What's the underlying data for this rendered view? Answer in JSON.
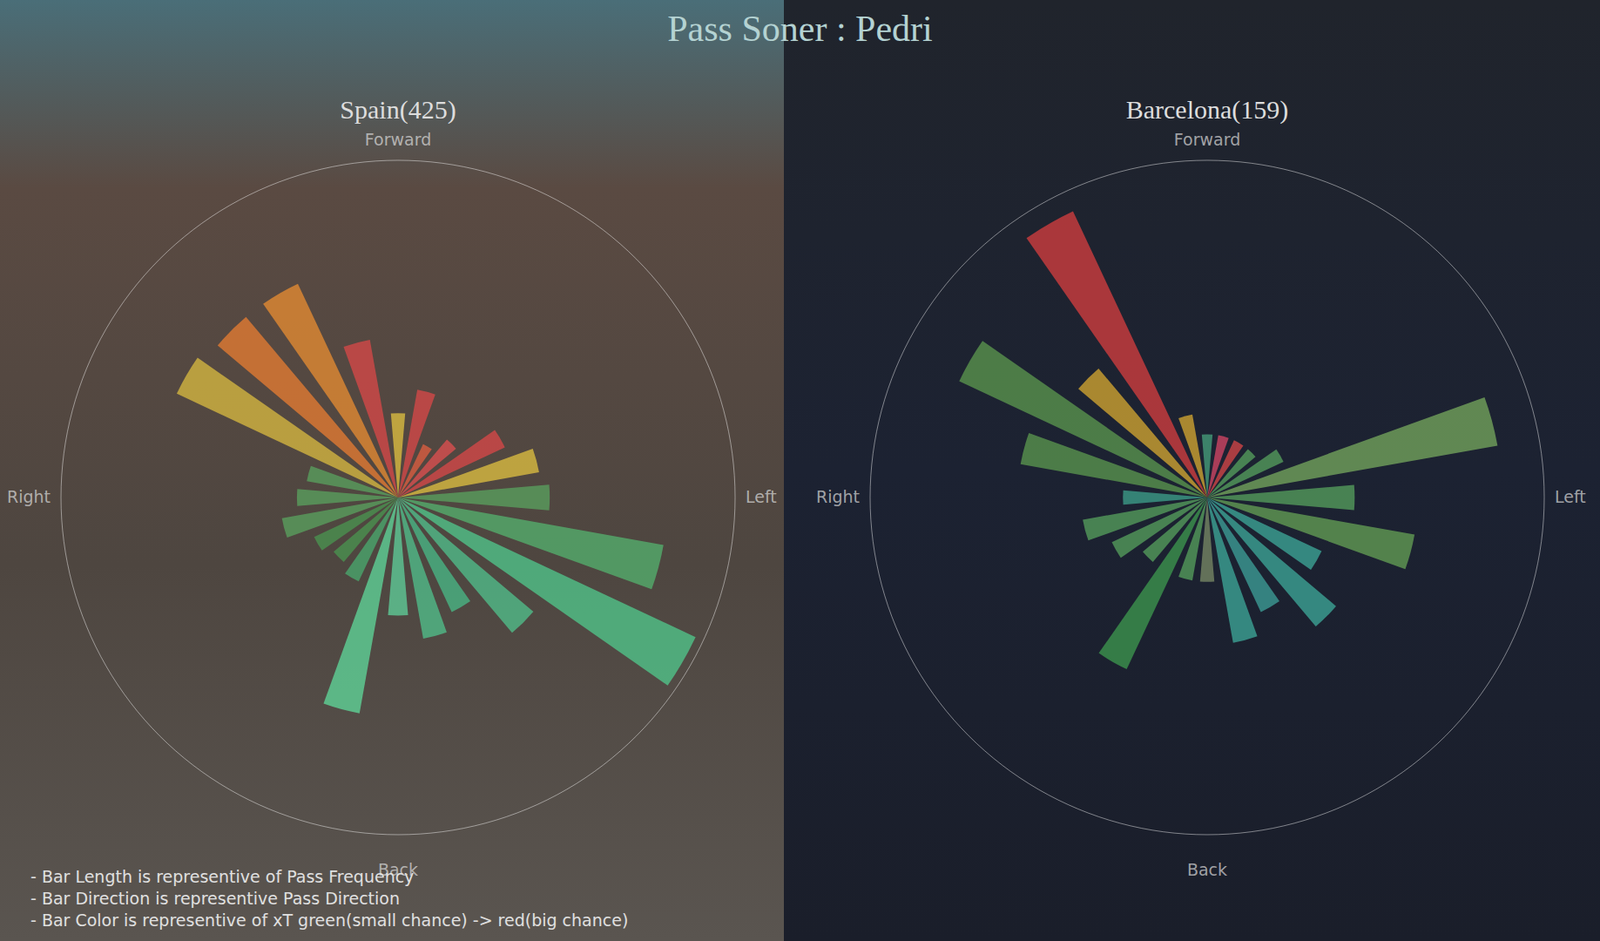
{
  "title": "Pass Soner : Pedri",
  "notes": [
    "- Bar Length is representive of Pass Frequency",
    "- Bar Direction is representive Pass Direction",
    "- Bar Color is representive of xT green(small chance) -> red(big chance)"
  ],
  "chart_data": [
    {
      "type": "sonar",
      "title": "Spain(425)",
      "annotations": {
        "forward": "Forward",
        "back": "Back",
        "right": "Right",
        "left": "Left"
      },
      "categories": [
        null,
        null,
        null,
        null,
        null,
        null,
        null,
        null,
        null,
        null,
        null,
        null,
        null,
        null,
        null,
        null,
        null,
        null,
        null,
        null,
        null,
        null,
        null,
        null
      ],
      "values": [
        10,
        13,
        7,
        9,
        14,
        17,
        18,
        32,
        39,
        21,
        15,
        17,
        14,
        26,
        11,
        10,
        11,
        14,
        12,
        11,
        29,
        28,
        28,
        19
      ],
      "colors": [
        "#e8c840",
        "#e04848",
        "#e86040",
        "#e85050",
        "#e04848",
        "#e8c840",
        "#5aa860",
        "#55b870",
        "#50d090",
        "#50c890",
        "#48c08a",
        "#50c890",
        "#60d8a0",
        "#60e0a0",
        "#4ab070",
        "#4a9a50",
        "#4a9a50",
        "#5aa860",
        "#5aa860",
        "#5aa860",
        "#e0c040",
        "#f08030",
        "#f09030",
        "#e04848"
      ],
      "ylim": [
        0,
        40
      ],
      "tick_labels": false
    },
    {
      "type": "sonar",
      "title": "Barcelona(159)",
      "annotations": {
        "forward": "Forward",
        "back": "Back",
        "right": "Right",
        "left": "Left"
      },
      "categories": [
        null,
        null,
        null,
        null,
        null,
        null,
        null,
        null,
        null,
        null,
        null,
        null,
        null,
        null,
        null,
        null,
        null,
        null,
        null,
        null,
        null,
        null,
        null,
        null
      ],
      "values": [
        3,
        3,
        3,
        3,
        4,
        14,
        7,
        10,
        6,
        8,
        6,
        7,
        4,
        4,
        9,
        4,
        5,
        6,
        4,
        9,
        13,
        8,
        15,
        4
      ],
      "colors": [
        "#4aa880",
        "#e04868",
        "#e04848",
        "#5aa860",
        "#5aa860",
        "#7cb060",
        "#5aa860",
        "#6aa858",
        "#40b0a0",
        "#40b0a0",
        "#40a8a0",
        "#40b0a0",
        "#80906a",
        "#5aa860",
        "#40a050",
        "#5aa860",
        "#5aa860",
        "#5aa860",
        "#40a890",
        "#60a050",
        "#60a050",
        "#e0b030",
        "#e04040",
        "#e0b030"
      ],
      "ylim": [
        0,
        16
      ],
      "tick_labels": false
    }
  ]
}
